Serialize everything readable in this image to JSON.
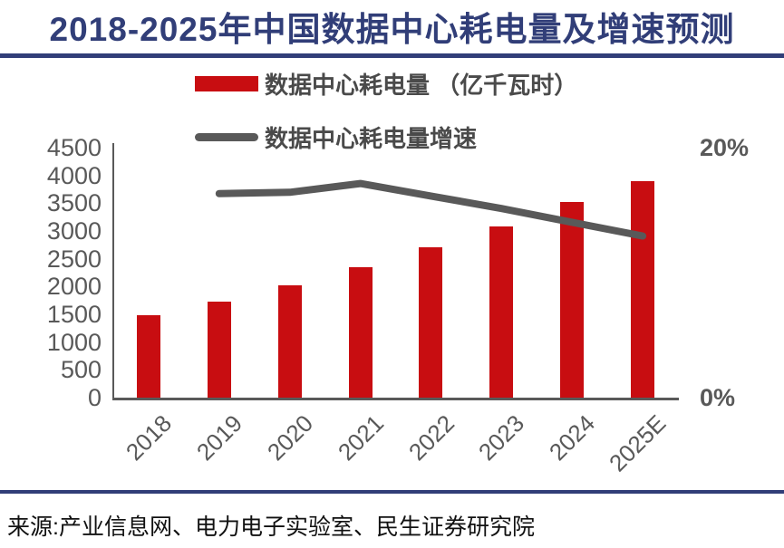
{
  "title": "2018-2025年中国数据中心耗电量及增速预测",
  "source": "来源:产业信息网、电力电子实验室、民生证券研究院",
  "theme": {
    "navy": "#313e78",
    "red": "#c80d11",
    "gray": "#595959",
    "background": "#ffffff"
  },
  "chart_data": {
    "type": "bar+line",
    "title": "2018-2025年中国数据中心耗电量及增速预测",
    "categories": [
      "2018",
      "2019",
      "2020",
      "2021",
      "2022",
      "2023",
      "2024",
      "2025E"
    ],
    "series": [
      {
        "name": "数据中心耗电量 （亿千瓦时）",
        "type": "bar",
        "axis": "left",
        "color": "#c80d11",
        "values": [
          1500,
          1750,
          2030,
          2370,
          2730,
          3090,
          3540,
          3920
        ]
      },
      {
        "name": "数据中心耗电量增速",
        "type": "line",
        "axis": "right",
        "color": "#595959",
        "values": [
          null,
          16.4,
          16.5,
          17.2,
          16.2,
          15.2,
          14.1,
          13.0
        ]
      }
    ],
    "left_axis": {
      "min": 0,
      "max": 4500,
      "step": 500
    },
    "right_axis": {
      "min": 0,
      "max": 20,
      "ticks": [
        {
          "text": "0%",
          "value": 0
        },
        {
          "text": "20%",
          "value": 20
        }
      ]
    },
    "legend_position": "top",
    "grid": false
  }
}
